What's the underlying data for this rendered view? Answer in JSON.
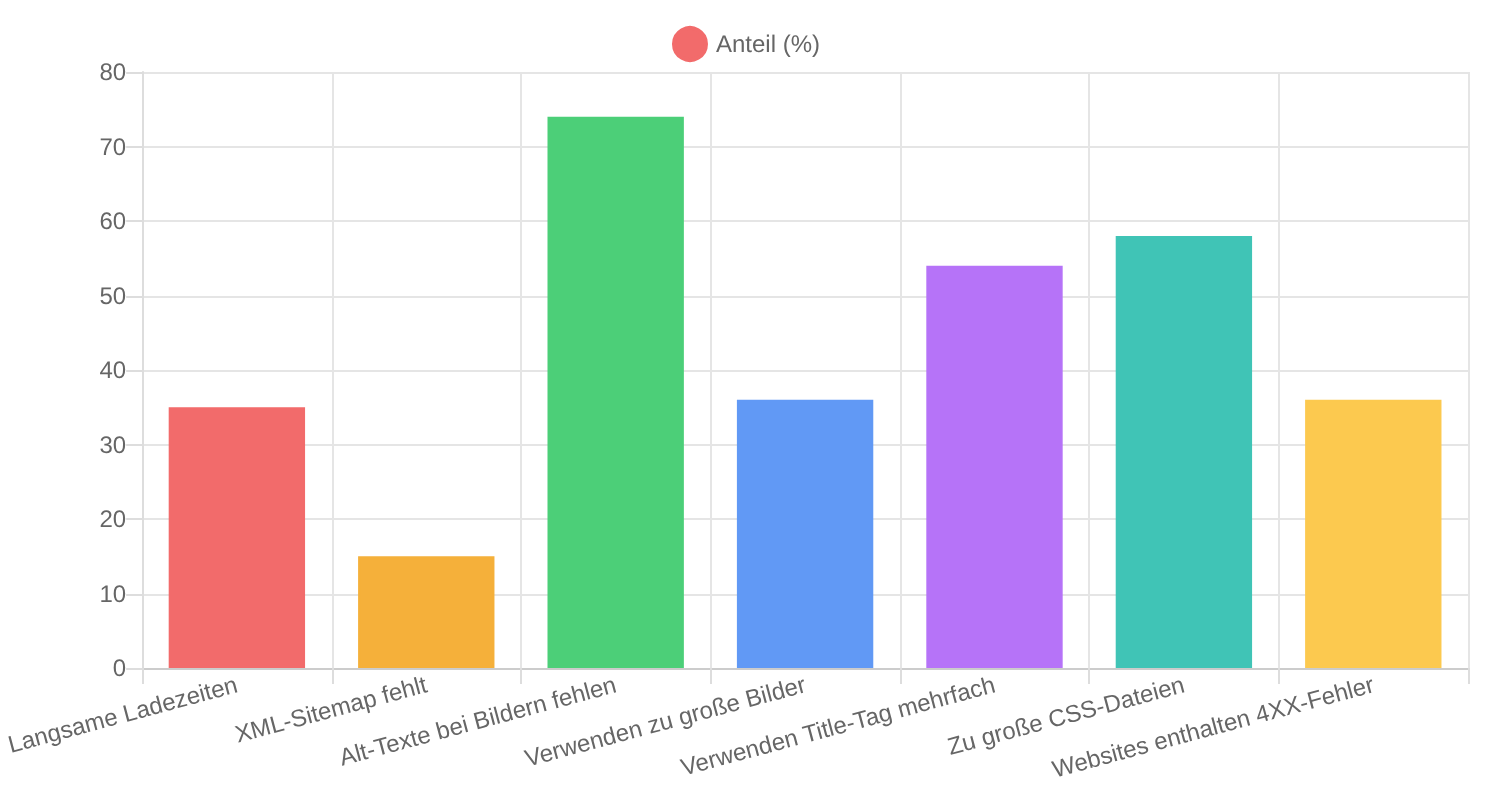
{
  "chart_data": {
    "type": "bar",
    "categories": [
      "Langsame Ladezeiten",
      "XML-Sitemap fehlt",
      "Alt-Texte bei Bildern fehlen",
      "Verwenden zu große Bilder",
      "Verwenden Title-Tag mehrfach",
      "Zu große CSS-Dateien",
      "Websites enthalten 4XX-Fehler"
    ],
    "series": [
      {
        "name": "Anteil (%)",
        "color": "#f26b6b",
        "colors": [
          "#f26b6b",
          "#f5b03a",
          "#4ccf78",
          "#6199f5",
          "#b673f8",
          "#40c4b6",
          "#fcc94f"
        ],
        "values": [
          35,
          15,
          74,
          36,
          54,
          58,
          36
        ]
      }
    ],
    "ylim": [
      0,
      80
    ],
    "yticks": [
      0,
      10,
      20,
      30,
      40,
      50,
      60,
      70,
      80
    ],
    "grid": true,
    "legend": "top"
  }
}
